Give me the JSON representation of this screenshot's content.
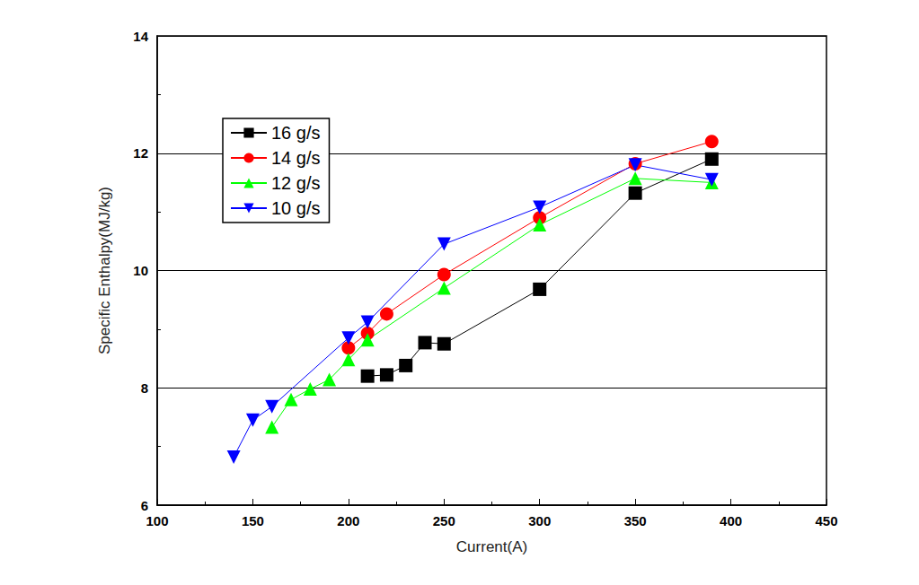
{
  "chart_data": {
    "type": "line",
    "x_label": "Current(A)",
    "y_label": "Specific Enthalpy(MJ/kg)",
    "xlim": [
      100,
      450
    ],
    "xticks": [
      100,
      150,
      200,
      250,
      300,
      350,
      400,
      450
    ],
    "ylim": [
      6,
      14
    ],
    "yticks": [
      6,
      8,
      10,
      12,
      14
    ],
    "grid": true,
    "legend": "upper left",
    "series": [
      {
        "name": "16 g/s",
        "color": "#000000",
        "marker": "square",
        "x": [
          210,
          220,
          230,
          240,
          250,
          300,
          350,
          390
        ],
        "values": [
          8.2,
          8.22,
          8.38,
          8.77,
          8.75,
          9.68,
          11.32,
          11.9
        ]
      },
      {
        "name": "14 g/s",
        "color": "#ff0000",
        "marker": "circle",
        "x": [
          200,
          210,
          220,
          250,
          300,
          350,
          390
        ],
        "values": [
          8.68,
          8.93,
          9.26,
          9.93,
          10.9,
          11.82,
          12.2
        ]
      },
      {
        "name": "12 g/s",
        "color": "#00ff00",
        "marker": "triangle",
        "x": [
          160,
          170,
          180,
          190,
          200,
          210,
          250,
          300,
          350,
          390
        ],
        "values": [
          7.33,
          7.8,
          7.98,
          8.14,
          8.48,
          8.82,
          9.7,
          10.78,
          11.57,
          11.5
        ]
      },
      {
        "name": "10 g/s",
        "color": "#0000ff",
        "marker": "triangle-down",
        "x": [
          140,
          150,
          160,
          200,
          210,
          250,
          300,
          350,
          390
        ],
        "values": [
          6.82,
          7.45,
          7.68,
          8.85,
          9.12,
          10.45,
          11.08,
          11.8,
          11.55
        ]
      }
    ]
  }
}
